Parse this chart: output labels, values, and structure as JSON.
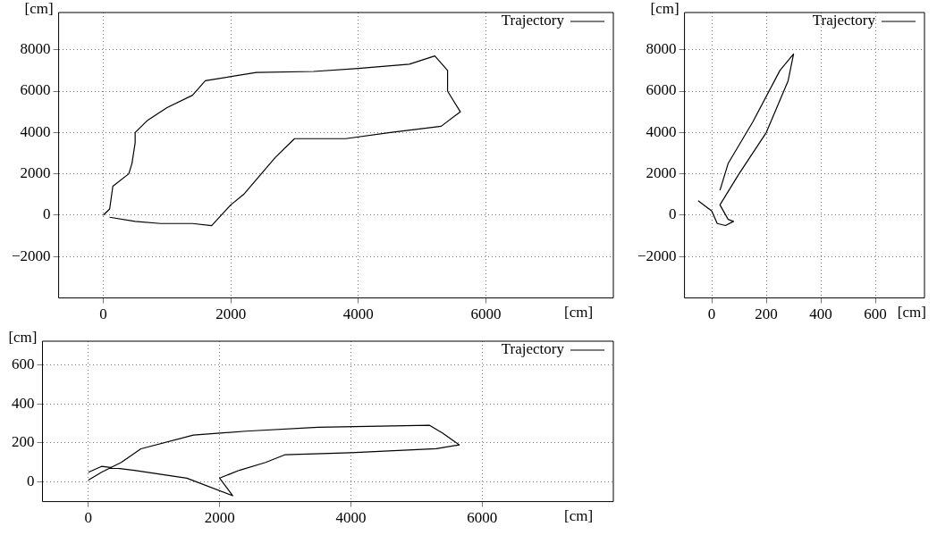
{
  "chart_data": [
    {
      "type": "line",
      "xlabel": "[cm]",
      "ylabel": "[cm]",
      "legend": "top right",
      "grid": true,
      "marker": "none",
      "xlim": [
        -700,
        8000
      ],
      "ylim": [
        -4000,
        9800
      ],
      "xticks": [
        0,
        2000,
        4000,
        6000
      ],
      "yticks": [
        {
          "value": -2000,
          "label": "−2000"
        },
        0,
        2000,
        4000,
        6000,
        8000
      ],
      "series": [
        {
          "name": "Trajectory",
          "color": "#000000",
          "x": [
            0,
            100,
            150,
            400,
            450,
            500,
            500,
            700,
            1000,
            1400,
            1600,
            2400,
            3300,
            4000,
            4800,
            5200,
            5400,
            5400,
            5600,
            5300,
            4500,
            3800,
            3000,
            2700,
            2200,
            2000,
            1700,
            1400,
            900,
            500,
            100
          ],
          "values": [
            0,
            300,
            1400,
            2000,
            2500,
            3500,
            4000,
            4600,
            5200,
            5800,
            6500,
            6900,
            6950,
            7100,
            7300,
            7700,
            7000,
            6000,
            5000,
            4300,
            4000,
            3700,
            3700,
            2800,
            1000,
            500,
            -500,
            -400,
            -400,
            -300,
            -100
          ]
        }
      ]
    },
    {
      "type": "line",
      "xlabel": "[cm]",
      "ylabel": "[cm]",
      "legend": "top right",
      "grid": true,
      "marker": "none",
      "xlim": [
        -100,
        780
      ],
      "ylim": [
        -4000,
        9800
      ],
      "xticks": [
        0,
        200,
        400,
        600
      ],
      "yticks": [
        {
          "value": -2000,
          "label": "−2000"
        },
        0,
        2000,
        4000,
        6000,
        8000
      ],
      "series": [
        {
          "name": "Trajectory",
          "color": "#000000",
          "x": [
            -50,
            0,
            20,
            50,
            80,
            60,
            30,
            100,
            200,
            280,
            300,
            250,
            150,
            60,
            30
          ],
          "values": [
            700,
            200,
            -400,
            -500,
            -300,
            -200,
            500,
            2000,
            4000,
            6500,
            7800,
            7000,
            4500,
            2500,
            1200
          ]
        }
      ]
    },
    {
      "type": "line",
      "xlabel": "[cm]",
      "ylabel": "[cm]",
      "legend": "top right",
      "grid": true,
      "marker": "none",
      "xlim": [
        -700,
        8000
      ],
      "ylim": [
        -100,
        720
      ],
      "xticks": [
        0,
        2000,
        4000,
        6000
      ],
      "yticks": [
        0,
        200,
        400,
        600
      ],
      "series": [
        {
          "name": "Trajectory",
          "color": "#000000",
          "x": [
            0,
            200,
            500,
            800,
            1600,
            2400,
            3500,
            5200,
            5400,
            5650,
            5300,
            4000,
            3000,
            2700,
            2300,
            2000,
            2200,
            1500,
            700,
            200,
            0
          ],
          "values": [
            10,
            50,
            100,
            170,
            240,
            260,
            280,
            290,
            250,
            190,
            170,
            150,
            140,
            100,
            60,
            20,
            -70,
            20,
            60,
            80,
            50
          ]
        }
      ]
    }
  ]
}
